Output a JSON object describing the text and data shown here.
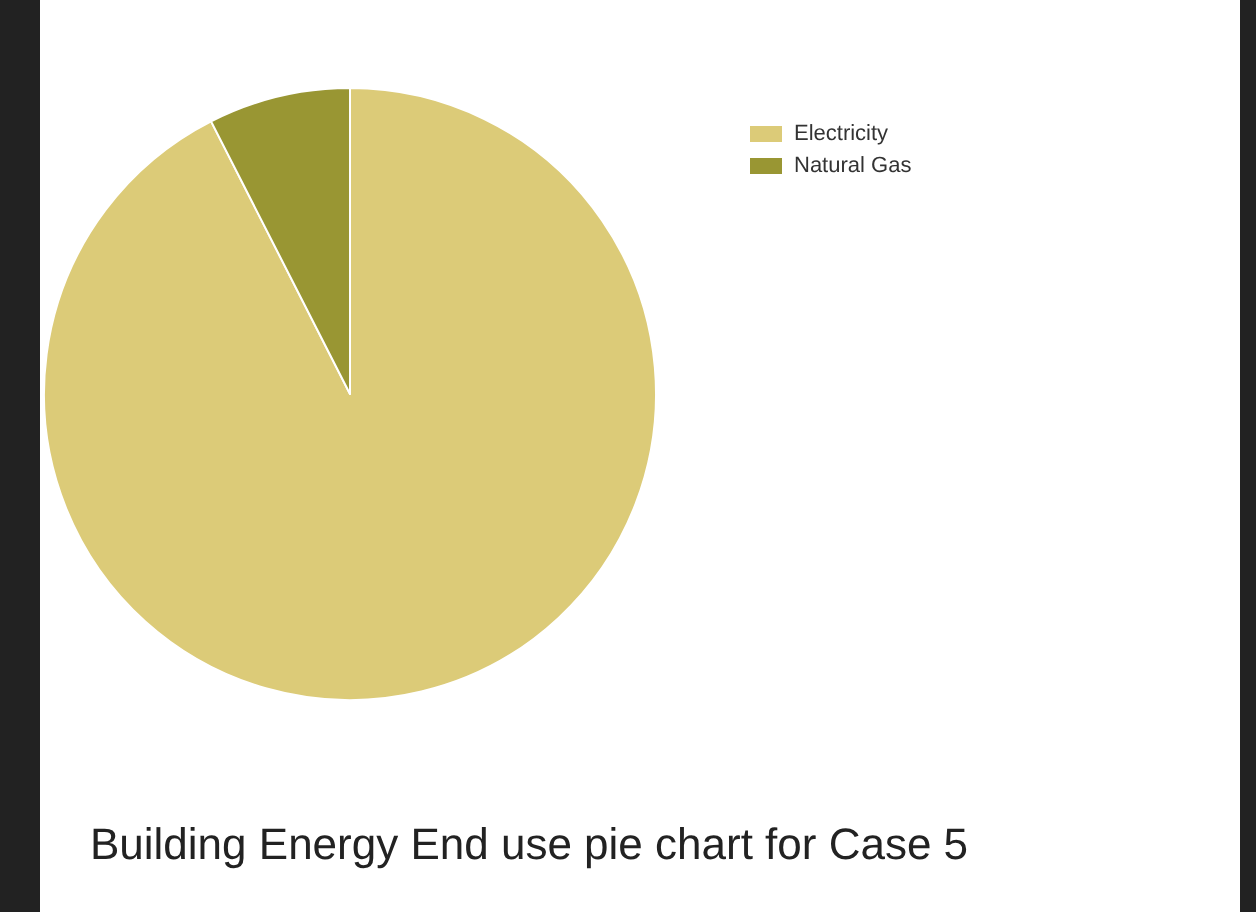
{
  "chart_data": {
    "type": "pie",
    "title": "Building Energy End use pie chart for Case 5",
    "categories": [
      "Electricity",
      "Natural Gas"
    ],
    "values": [
      92.5,
      7.5
    ],
    "colors": [
      "#dccb78",
      "#999633"
    ],
    "legend": "top right"
  }
}
